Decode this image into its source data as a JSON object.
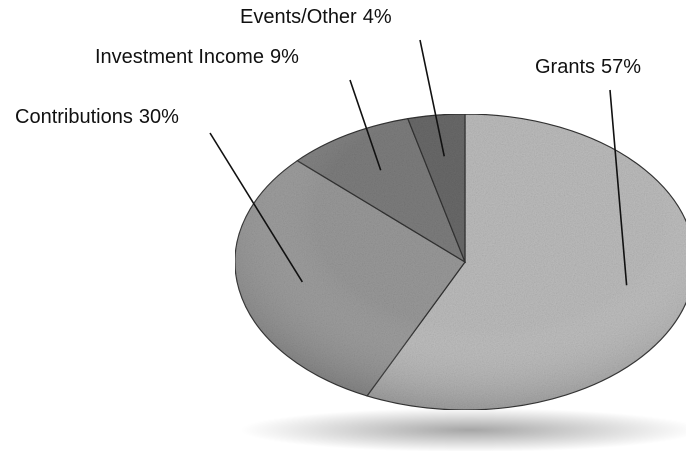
{
  "chart_data": {
    "type": "pie",
    "categories": [
      "Grants",
      "Contributions",
      "Investment Income",
      "Events/Other"
    ],
    "values": [
      57,
      30,
      9,
      4
    ],
    "value_labels": [
      "57%",
      "30%",
      "9%",
      "4%"
    ],
    "colors": [
      "#bdbdbd",
      "#9a9a9a",
      "#7e7e7e",
      "#6a6a6a"
    ]
  }
}
